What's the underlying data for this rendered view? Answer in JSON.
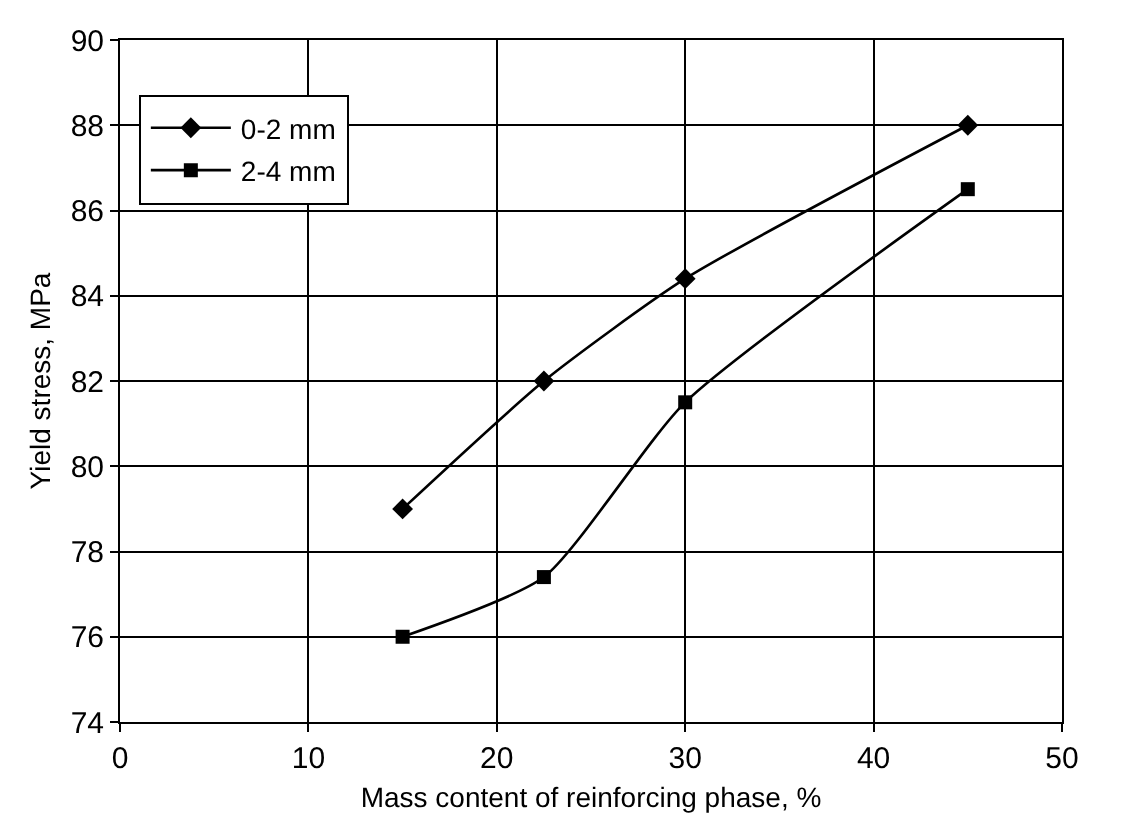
{
  "chart_data": {
    "type": "line",
    "xlabel": "Mass content of reinforcing phase, %",
    "ylabel": "Yield stress, MPa",
    "x": [
      15,
      22.5,
      30,
      45
    ],
    "series": [
      {
        "name": "0-2 mm",
        "color": "#000000",
        "marker": "diamond",
        "values": [
          79,
          82,
          84.4,
          88
        ]
      },
      {
        "name": "2-4 mm",
        "color": "#000000",
        "marker": "square",
        "values": [
          76,
          77.4,
          81.5,
          86.5
        ]
      }
    ],
    "xlim": [
      0,
      50
    ],
    "xticks": [
      0,
      10,
      20,
      30,
      40,
      50
    ],
    "ylim": [
      74,
      90
    ],
    "yticks": [
      74,
      76,
      78,
      80,
      82,
      84,
      86,
      88,
      90
    ],
    "grid": true,
    "legend": "top left",
    "line_style": "solid"
  }
}
